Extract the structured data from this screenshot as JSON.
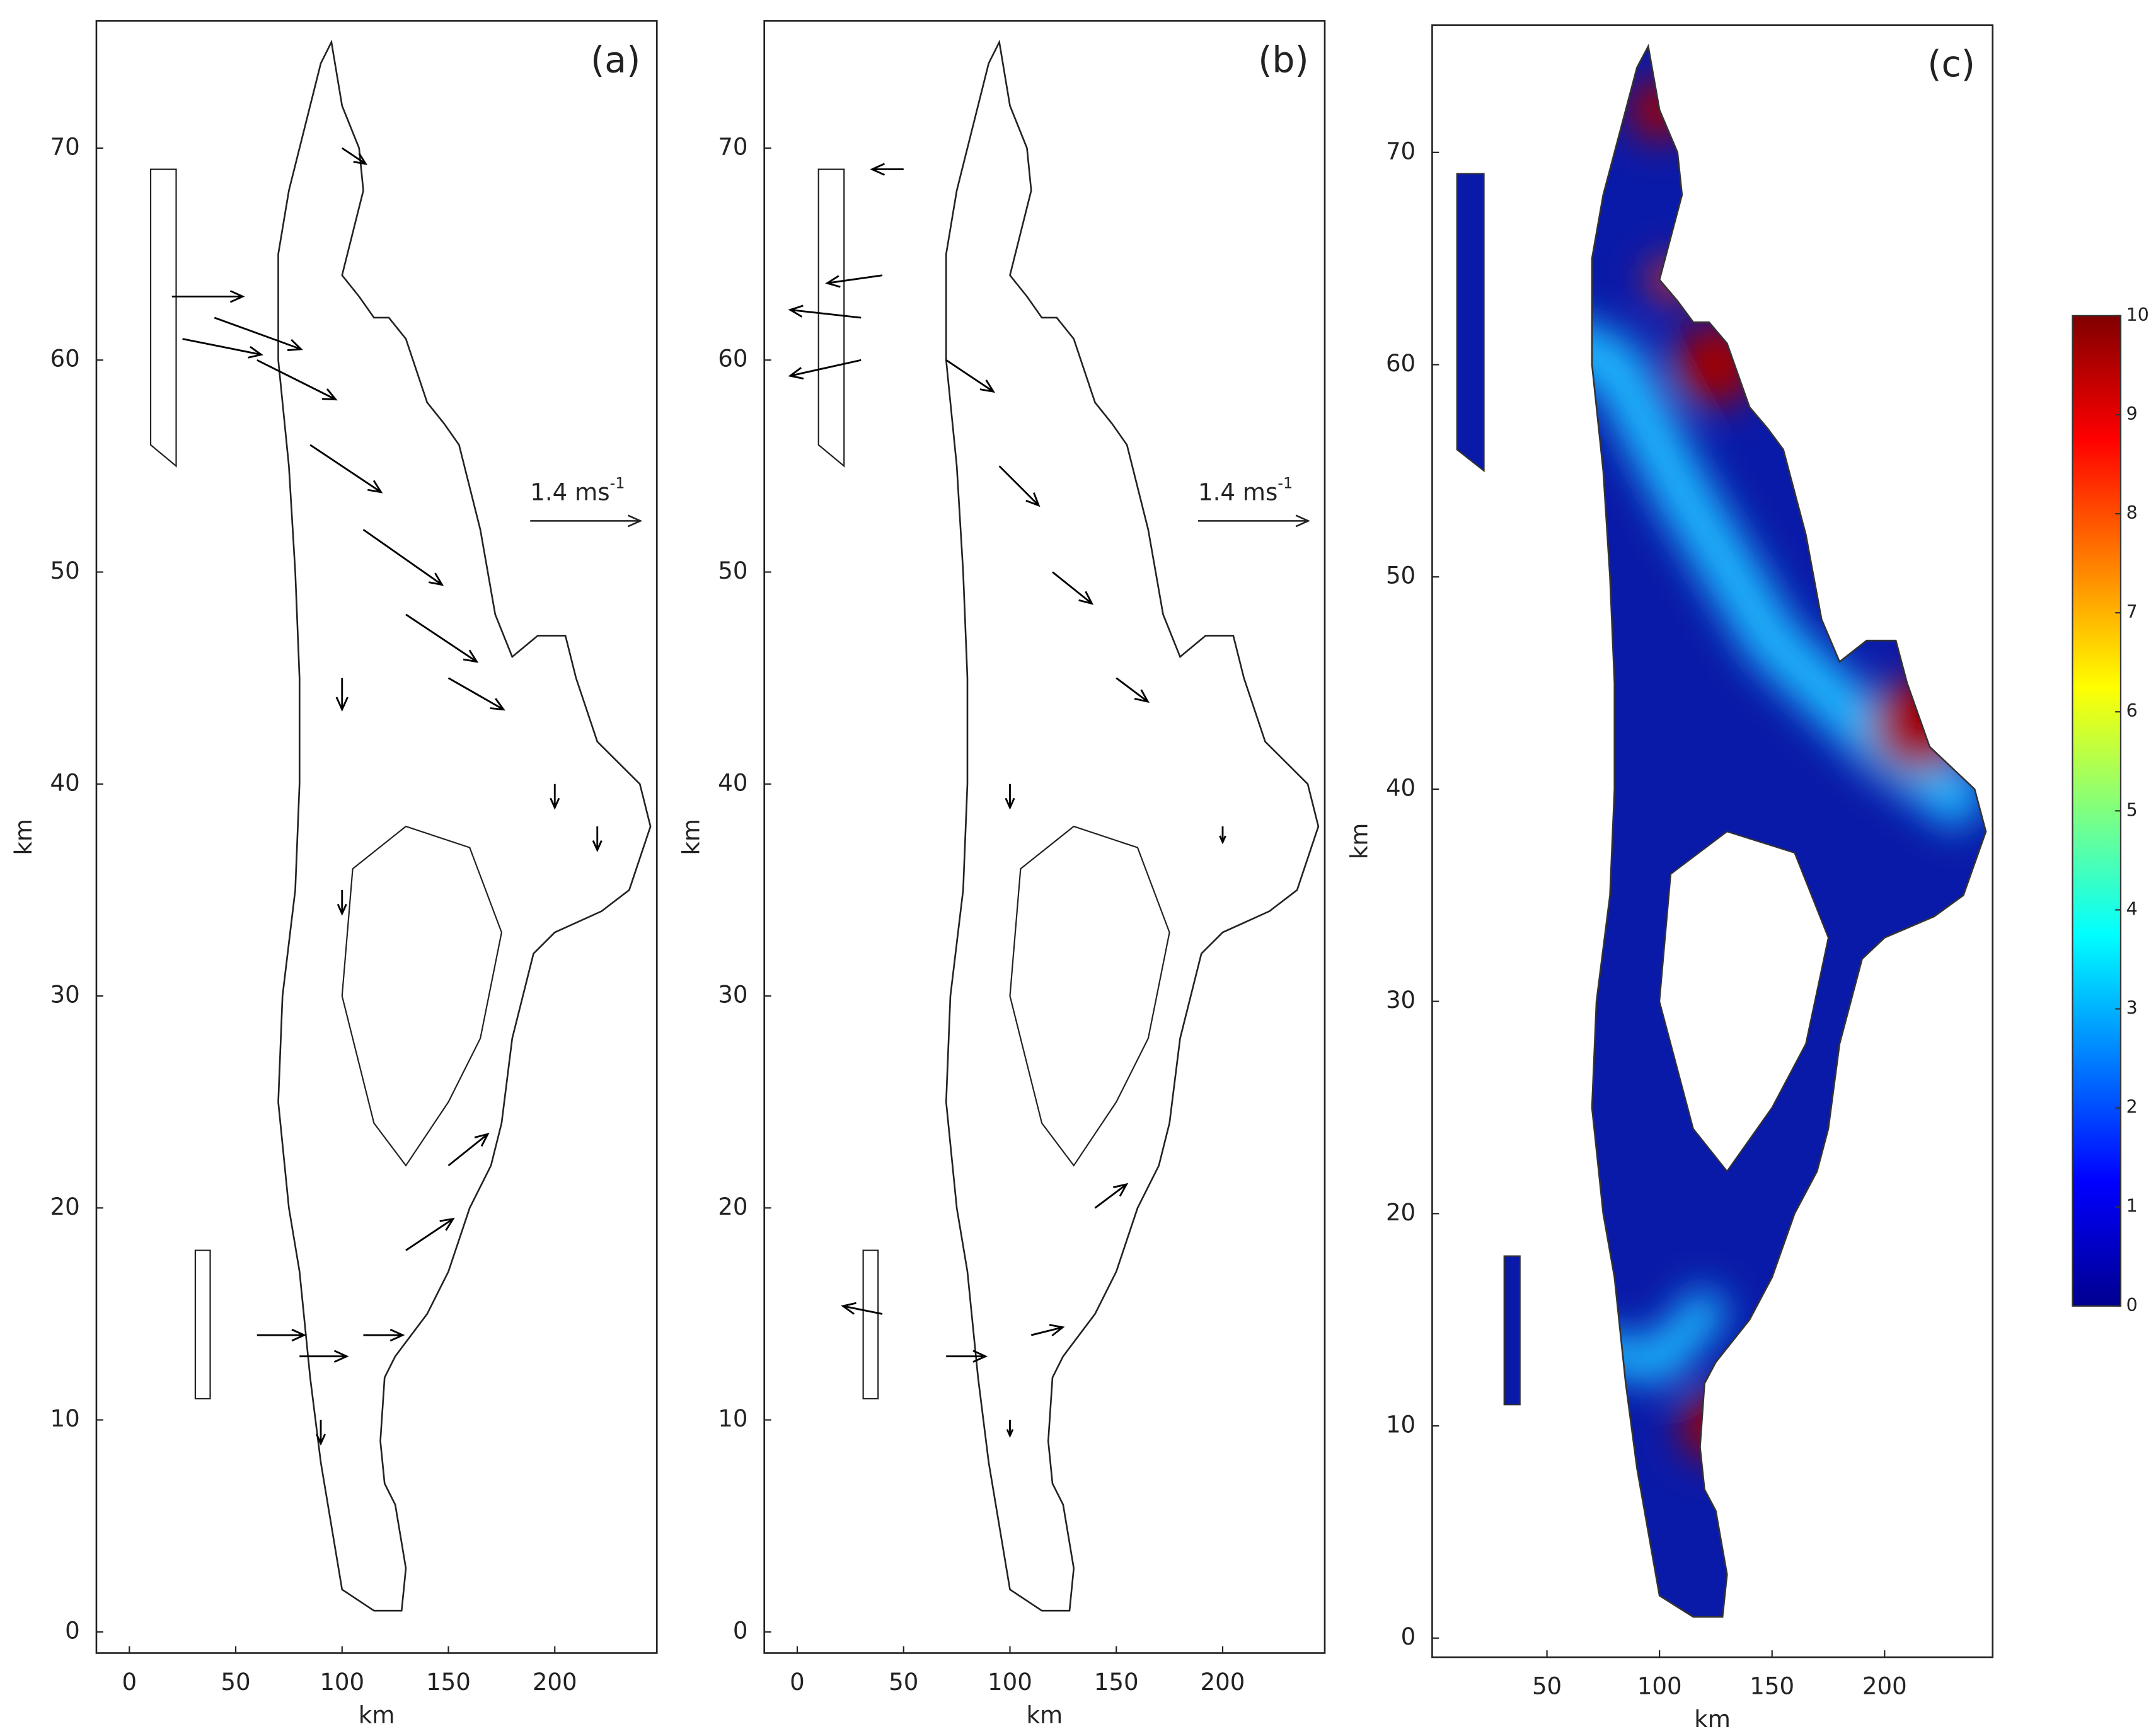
{
  "chart_data": [
    {
      "type": "quiver",
      "title": "(a)",
      "xlabel": "km",
      "ylabel": "km",
      "xlim": [
        -15.5,
        248
      ],
      "ylim": [
        -1,
        76
      ],
      "xticks": [
        0,
        50,
        100,
        150,
        200
      ],
      "yticks": [
        0,
        10,
        20,
        30,
        40,
        50,
        60,
        70
      ],
      "reference_speed": 1.4,
      "reference_label": {
        "text": "1.4 ms",
        "superscript": "-1"
      },
      "x": [
        20,
        25,
        40,
        60,
        85,
        110,
        130,
        150,
        100,
        100,
        200,
        220,
        60,
        80,
        110,
        130,
        150,
        100,
        90
      ],
      "y": [
        63,
        61,
        62,
        60,
        56,
        52,
        48,
        45,
        45,
        35,
        40,
        38,
        14,
        13,
        14,
        18,
        22,
        70,
        10
      ],
      "u": [
        0.9,
        1.0,
        1.1,
        1.0,
        0.9,
        1.0,
        0.9,
        0.7,
        0,
        0,
        0,
        0,
        0.6,
        0.6,
        0.5,
        0.6,
        0.5,
        0.3,
        0
      ],
      "v": [
        0,
        -0.2,
        -0.4,
        -0.5,
        -0.6,
        -0.7,
        -0.6,
        -0.4,
        -0.4,
        -0.3,
        -0.3,
        -0.3,
        0,
        0,
        0,
        0.4,
        0.4,
        -0.2,
        -0.3
      ],
      "color": "#000000"
    },
    {
      "type": "quiver",
      "title": "(b)",
      "xlabel": "km",
      "ylabel": "km",
      "xlim": [
        -15.5,
        248
      ],
      "ylim": [
        -1,
        76
      ],
      "xticks": [
        0,
        50,
        100,
        150,
        200
      ],
      "yticks": [
        0,
        10,
        20,
        30,
        40,
        50,
        60,
        70
      ],
      "reference_speed": 1.4,
      "reference_label": {
        "text": "1.4 ms",
        "superscript": "-1"
      },
      "x": [
        30,
        30,
        40,
        70,
        95,
        120,
        150,
        100,
        200,
        40,
        70,
        110,
        140,
        50,
        100
      ],
      "y": [
        62,
        60,
        64,
        60,
        55,
        50,
        45,
        40,
        38,
        15,
        13,
        14,
        20,
        69,
        10
      ],
      "u": [
        -0.9,
        -0.9,
        -0.7,
        0.6,
        0.5,
        0.5,
        0.4,
        0,
        0,
        -0.5,
        0.5,
        0.4,
        0.4,
        -0.4,
        0
      ],
      "v": [
        0.1,
        -0.2,
        -0.1,
        -0.4,
        -0.5,
        -0.4,
        -0.3,
        -0.3,
        -0.2,
        0.1,
        0,
        0.1,
        0.3,
        0,
        -0.2
      ],
      "color": "#000000"
    },
    {
      "type": "field",
      "title": "(c)",
      "xlabel": "km",
      "ylabel": "km",
      "xlim": [
        -1,
        248
      ],
      "ylim": [
        -0.9,
        76
      ],
      "xticks": [
        50,
        100,
        150,
        200
      ],
      "yticks": [
        0,
        10,
        20,
        30,
        40,
        50,
        60,
        70
      ],
      "colormap": "jet",
      "colorbar": {
        "lim": [
          0,
          10
        ],
        "ticks": [
          0,
          1,
          2,
          3,
          4,
          5,
          6,
          7,
          8,
          9,
          10
        ]
      }
    }
  ]
}
